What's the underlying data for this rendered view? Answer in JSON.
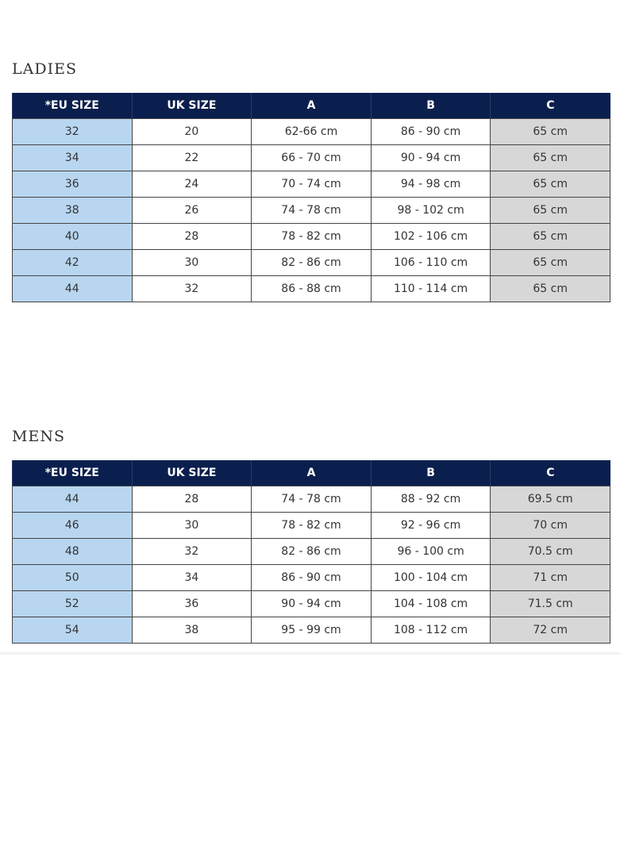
{
  "headers": [
    "*EU SIZE",
    "UK SIZE",
    "A",
    "B",
    "C"
  ],
  "colors": {
    "header": "#0b1f4e",
    "eu_column": "#b8d6f0",
    "c_column": "#d7d7d7"
  },
  "ladies": {
    "title": "LADIES",
    "rows": [
      [
        "32",
        "20",
        "62-66 cm",
        "86 - 90 cm",
        "65 cm"
      ],
      [
        "34",
        "22",
        "66 - 70 cm",
        "90 - 94 cm",
        "65 cm"
      ],
      [
        "36",
        "24",
        "70 - 74 cm",
        "94 - 98 cm",
        "65 cm"
      ],
      [
        "38",
        "26",
        "74 - 78 cm",
        "98 - 102 cm",
        "65 cm"
      ],
      [
        "40",
        "28",
        "78 - 82 cm",
        "102 - 106 cm",
        "65 cm"
      ],
      [
        "42",
        "30",
        "82 - 86 cm",
        "106 - 110 cm",
        "65 cm"
      ],
      [
        "44",
        "32",
        "86 - 88 cm",
        "110 - 114 cm",
        "65 cm"
      ]
    ]
  },
  "mens": {
    "title": "MENS",
    "rows": [
      [
        "44",
        "28",
        "74 - 78 cm",
        "88 - 92 cm",
        "69.5 cm"
      ],
      [
        "46",
        "30",
        "78 - 82 cm",
        "92 - 96 cm",
        "70 cm"
      ],
      [
        "48",
        "32",
        "82 - 86 cm",
        "96 - 100 cm",
        "70.5 cm"
      ],
      [
        "50",
        "34",
        "86 - 90 cm",
        "100 - 104 cm",
        "71 cm"
      ],
      [
        "52",
        "36",
        "90 - 94 cm",
        "104 - 108 cm",
        "71.5 cm"
      ],
      [
        "54",
        "38",
        "95 - 99 cm",
        "108 - 112 cm",
        "72 cm"
      ]
    ]
  }
}
